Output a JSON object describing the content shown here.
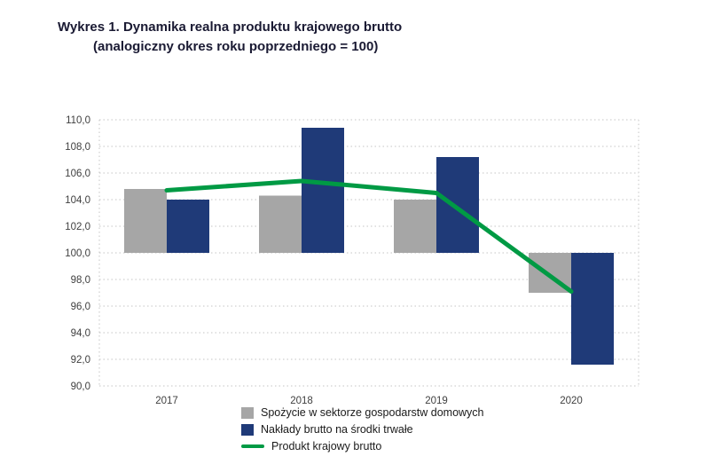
{
  "title": {
    "line1": "Wykres 1. Dynamika realna produktu krajowego brutto",
    "line2": "(analogiczny okres roku poprzedniego = 100)"
  },
  "colors": {
    "bar_gray": "#a6a6a6",
    "bar_navy": "#1f3a78",
    "line_green": "#009a44",
    "grid": "#c4c4c4",
    "tick_text": "#404040"
  },
  "chart_data": {
    "type": "bar",
    "subtype": "grouped bars with line overlay, baseline at index 100",
    "categories": [
      "2017",
      "2018",
      "2019",
      "2020"
    ],
    "baseline": 100,
    "ylim": [
      90,
      110
    ],
    "ytick_step": 2,
    "ytick_labels": [
      "90,0",
      "92,0",
      "94,0",
      "96,0",
      "98,0",
      "100,0",
      "102,0",
      "104,0",
      "106,0",
      "108,0",
      "110,0"
    ],
    "grid": "dotted horizontal",
    "legend_position": "bottom",
    "series": [
      {
        "name": "Spożycie w sektorze gospodarstw domowych",
        "type": "bar",
        "color_key": "bar_gray",
        "values": [
          104.8,
          104.3,
          104.0,
          97.0
        ]
      },
      {
        "name": "Nakłady brutto na środki trwałe",
        "type": "bar",
        "color_key": "bar_navy",
        "values": [
          104.0,
          109.4,
          107.2,
          91.6
        ]
      },
      {
        "name": "Produkt krajowy brutto",
        "type": "line",
        "color_key": "line_green",
        "values": [
          104.7,
          105.4,
          104.5,
          97.1
        ]
      }
    ]
  }
}
